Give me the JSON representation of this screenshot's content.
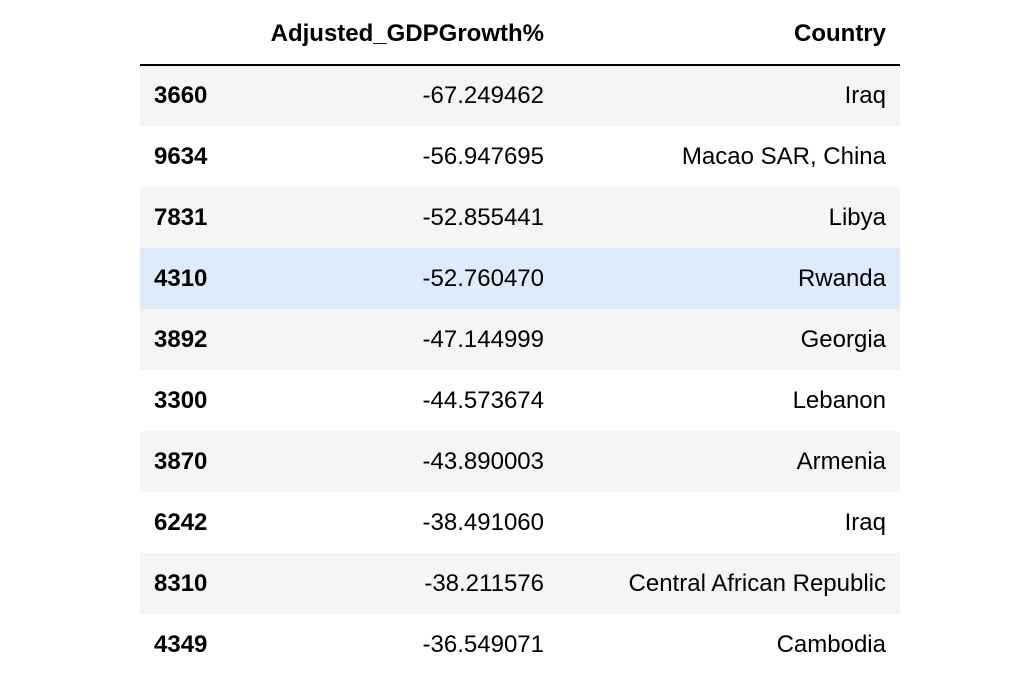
{
  "table": {
    "columns": [
      "Adjusted_GDPGrowth%",
      "Country"
    ],
    "rows": [
      {
        "index": "3660",
        "values": [
          "-67.249462",
          "Iraq"
        ]
      },
      {
        "index": "9634",
        "values": [
          "-56.947695",
          "Macao SAR, China"
        ]
      },
      {
        "index": "7831",
        "values": [
          "-52.855441",
          "Libya"
        ]
      },
      {
        "index": "4310",
        "values": [
          "-52.760470",
          "Rwanda"
        ]
      },
      {
        "index": "3892",
        "values": [
          "-47.144999",
          "Georgia"
        ]
      },
      {
        "index": "3300",
        "values": [
          "-44.573674",
          "Lebanon"
        ]
      },
      {
        "index": "3870",
        "values": [
          "-43.890003",
          "Armenia"
        ]
      },
      {
        "index": "6242",
        "values": [
          "-38.491060",
          "Iraq"
        ]
      },
      {
        "index": "8310",
        "values": [
          "-38.211576",
          "Central African Republic"
        ]
      },
      {
        "index": "4349",
        "values": [
          "-36.549071",
          "Cambodia"
        ]
      }
    ]
  }
}
